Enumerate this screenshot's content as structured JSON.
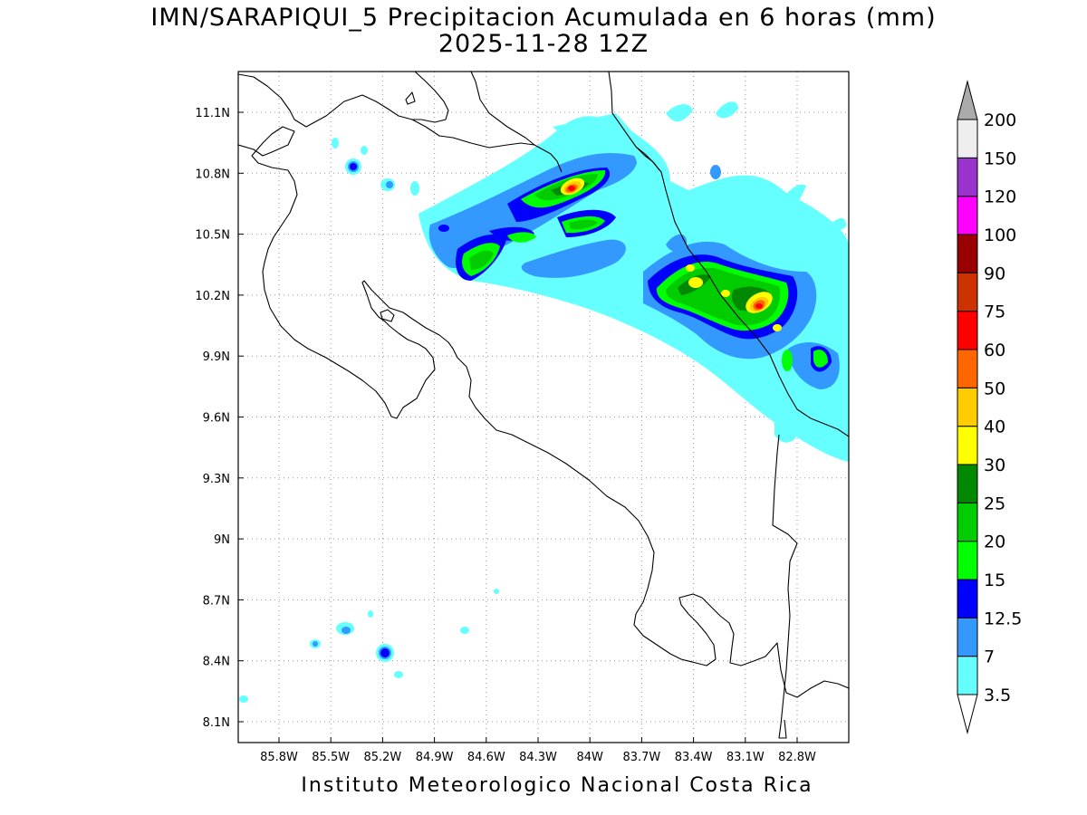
{
  "title": "IMN/SARAPIQUI_5 Precipitacion Acumulada en 6 horas (mm)",
  "subtitle": "2025-11-28 12Z",
  "credit": "Instituto Meteorologico Nacional Costa Rica",
  "map": {
    "lon_range": [
      -86.1,
      -83.05
    ],
    "lat_range": [
      8.0,
      11.3
    ],
    "lon_ticks": [
      {
        "value": -85.8,
        "label": "85.8W"
      },
      {
        "value": -85.5,
        "label": "85.5W"
      },
      {
        "value": -85.2,
        "label": "85.2W"
      },
      {
        "value": -84.9,
        "label": "84.9W"
      },
      {
        "value": -84.6,
        "label": "84.6W"
      },
      {
        "value": -84.3,
        "label": "84.3W"
      },
      {
        "value": -84.0,
        "label": "84W"
      },
      {
        "value": -83.7,
        "label": "83.7W"
      },
      {
        "value": -83.4,
        "label": "83.4W"
      },
      {
        "value": -83.1,
        "label": "83.1W"
      },
      {
        "value": -82.8,
        "label": "82.8W"
      }
    ],
    "lat_ticks": [
      {
        "value": 11.1,
        "label": "11.1N"
      },
      {
        "value": 10.8,
        "label": "10.8N"
      },
      {
        "value": 10.5,
        "label": "10.5N"
      },
      {
        "value": 10.2,
        "label": "10.2N"
      },
      {
        "value": 9.9,
        "label": "9.9N"
      },
      {
        "value": 9.6,
        "label": "9.6N"
      },
      {
        "value": 9.3,
        "label": "9.3N"
      },
      {
        "value": 9.0,
        "label": "9N"
      },
      {
        "value": 8.7,
        "label": "8.7N"
      },
      {
        "value": 8.4,
        "label": "8.4N"
      },
      {
        "value": 8.1,
        "label": "8.1N"
      }
    ],
    "grid": "dotted"
  },
  "colorbar": {
    "levels": [
      {
        "label": "3.5",
        "color": "#66ffff"
      },
      {
        "label": "7",
        "color": "#3399ff"
      },
      {
        "label": "12.5",
        "color": "#0000ff"
      },
      {
        "label": "15",
        "color": "#00ff00"
      },
      {
        "label": "20",
        "color": "#00cc00"
      },
      {
        "label": "25",
        "color": "#008800"
      },
      {
        "label": "30",
        "color": "#ffff00"
      },
      {
        "label": "40",
        "color": "#ffcc00"
      },
      {
        "label": "50",
        "color": "#ff6600"
      },
      {
        "label": "60",
        "color": "#ff0000"
      },
      {
        "label": "75",
        "color": "#cc3300"
      },
      {
        "label": "90",
        "color": "#990000"
      },
      {
        "label": "100",
        "color": "#ff00ff"
      },
      {
        "label": "120",
        "color": "#9933cc"
      },
      {
        "label": "150",
        "color": "#eeeeee"
      },
      {
        "label": "200",
        "color": "#aaaaaa"
      }
    ]
  },
  "rain_cells": [
    {
      "lon": -84.05,
      "lat": 10.72,
      "level": 4
    },
    {
      "lon": -84.05,
      "lat": 10.73,
      "level": 9
    },
    {
      "lon": -84.35,
      "lat": 10.62,
      "level": 3
    },
    {
      "lon": -84.0,
      "lat": 10.55,
      "level": 4
    },
    {
      "lon": -84.55,
      "lat": 10.4,
      "level": 5
    },
    {
      "lon": -84.35,
      "lat": 10.5,
      "level": 4
    },
    {
      "lon": -83.4,
      "lat": 10.25,
      "level": 6
    },
    {
      "lon": -83.0,
      "lat": 10.15,
      "level": 9
    },
    {
      "lon": -82.7,
      "lat": 9.85,
      "level": 5
    }
  ]
}
